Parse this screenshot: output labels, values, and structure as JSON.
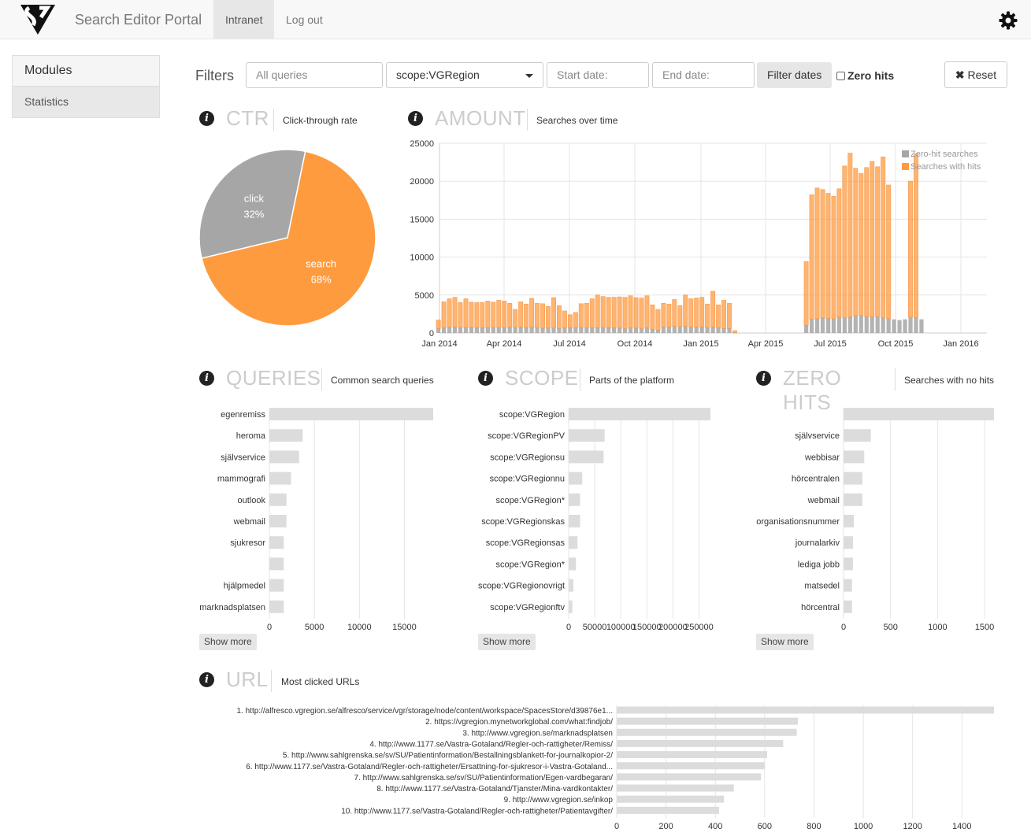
{
  "navbar": {
    "brand": "Search Editor Portal",
    "links": [
      "Intranet",
      "Log out"
    ],
    "settings_icon": "gear-icon"
  },
  "sidebar": {
    "heading": "Modules",
    "items": [
      "Statistics"
    ]
  },
  "filters": {
    "label": "Filters",
    "query_placeholder": "All queries",
    "scope_selected": "scope:VGRegion",
    "start_placeholder": "Start date:",
    "end_placeholder": "End date:",
    "filter_dates_label": "Filter dates",
    "zero_hits_label": "Zero hits",
    "zero_hits_checked": false,
    "reset_label": "Reset"
  },
  "sections": {
    "ctr": {
      "title": "CTR",
      "subtitle": "Click-through rate"
    },
    "amount": {
      "title": "AMOUNT",
      "subtitle": "Searches over time"
    },
    "queries": {
      "title": "QUERIES",
      "subtitle": "Common search queries",
      "show_more": "Show more"
    },
    "scope": {
      "title": "SCOPE",
      "subtitle": "Parts of the platform",
      "show_more": "Show more"
    },
    "zero_hits": {
      "title": "ZERO HITS",
      "subtitle": "Searches with no hits",
      "show_more": "Show more"
    },
    "url": {
      "title": "URL",
      "subtitle": "Most clicked URLs"
    }
  },
  "colors": {
    "orange": "#ff9b3f",
    "grey": "#a6a6a6",
    "bar": "#dcdcdc"
  },
  "chart_data": [
    {
      "type": "pie",
      "categories": [
        "click",
        "search"
      ],
      "values": [
        32,
        68
      ],
      "labels": [
        "32%",
        "68%"
      ]
    },
    {
      "type": "bar",
      "stacked": true,
      "x_tick_labels": [
        "Jan 2014",
        "Apr 2014",
        "Jul 2014",
        "Oct 2014",
        "Jan 2015",
        "Apr 2015",
        "Jul 2015",
        "Oct 2015",
        "Jan 2016"
      ],
      "ylim": [
        0,
        25000
      ],
      "y_ticks": [
        0,
        5000,
        10000,
        15000,
        20000,
        25000
      ],
      "legend": [
        "Zero-hit searches",
        "Searches with hits"
      ],
      "legend_position": "top-right",
      "grid": true,
      "series": [
        {
          "name": "Zero-hit searches",
          "values": [
            600,
            700,
            800,
            800,
            700,
            700,
            750,
            700,
            700,
            700,
            750,
            700,
            700,
            800,
            700,
            800,
            700,
            750,
            700,
            650,
            700,
            650,
            600,
            700,
            700,
            700,
            750,
            700,
            700,
            700,
            700,
            700,
            700,
            650,
            600,
            700,
            650,
            600,
            700,
            500,
            400,
            800,
            800,
            900,
            800,
            900,
            800,
            800,
            800,
            700,
            800,
            700,
            600,
            600,
            0,
            0,
            0,
            0,
            0,
            0,
            0,
            0,
            0,
            0,
            0,
            0,
            0,
            1000,
            1800,
            1900,
            2000,
            1900,
            1900,
            2100,
            2000,
            2100,
            2300,
            2300,
            2200,
            2100,
            2200,
            2000,
            1900,
            1800,
            1700,
            1800,
            2100,
            2000,
            1800
          ]
        },
        {
          "name": "Searches with hits",
          "values": [
            1100,
            3400,
            3700,
            3900,
            3300,
            3800,
            3300,
            3300,
            3300,
            3500,
            3300,
            3600,
            3500,
            3100,
            2400,
            3300,
            3100,
            3800,
            3200,
            3200,
            2800,
            4000,
            3000,
            2200,
            1700,
            2000,
            3100,
            3200,
            3800,
            4300,
            4100,
            4000,
            4000,
            4100,
            4100,
            4200,
            4000,
            4000,
            4200,
            3200,
            2700,
            3100,
            3000,
            3500,
            2800,
            4100,
            3700,
            3800,
            3900,
            3100,
            4700,
            3000,
            3700,
            3300,
            300,
            0,
            0,
            0,
            0,
            0,
            0,
            0,
            0,
            0,
            0,
            0,
            0,
            8400,
            16400,
            17200,
            16900,
            16500,
            16100,
            16900,
            20000,
            21600,
            19400,
            18700,
            19600,
            20500,
            19700,
            21200,
            17600,
            0,
            0,
            0,
            17900,
            21600,
            0
          ]
        }
      ]
    },
    {
      "type": "bar",
      "orientation": "horizontal",
      "categories": [
        "egenremiss",
        "heroma",
        "självservice",
        "mammografi",
        "outlook",
        "webmail",
        "sjukresor",
        "",
        "hjälpmedel",
        "marknadsplatsen"
      ],
      "values": [
        18200,
        3700,
        3300,
        2400,
        1900,
        1900,
        1600,
        1600,
        1600,
        1600
      ],
      "x_ticks": [
        0,
        5000,
        10000,
        15000
      ]
    },
    {
      "type": "bar",
      "orientation": "horizontal",
      "categories": [
        "scope:VGRegion",
        "scope:VGRegionPV",
        "scope:VGRegionsu",
        "scope:VGRegionnu",
        "scope:VGRegion*",
        "scope:VGRegionskas",
        "scope:VGRegionsas",
        "scope:VGRegion*",
        "scope:VGRegionovrigt",
        "scope:VGRegionftv"
      ],
      "values": [
        272000,
        69000,
        67000,
        26000,
        22000,
        22000,
        17000,
        14000,
        9000,
        7000
      ],
      "x_ticks": [
        0,
        50000,
        100000,
        150000,
        200000,
        250000
      ]
    },
    {
      "type": "bar",
      "orientation": "horizontal",
      "categories": [
        "",
        "självservice",
        "webbisar",
        "hörcentralen",
        "webmail",
        "organisationsnummer",
        "journalarkiv",
        "lediga jobb",
        "matsedel",
        "hörcentral"
      ],
      "values": [
        1600,
        290,
        220,
        200,
        200,
        110,
        100,
        100,
        90,
        90
      ],
      "x_ticks": [
        0,
        500,
        1000,
        1500
      ]
    },
    {
      "type": "bar",
      "orientation": "horizontal",
      "categories": [
        "1. http://alfresco.vgregion.se/alfresco/service/vgr/storage/node/content/workspace/SpacesStore/d39876e1...",
        "2. https://vgregion.mynetworkglobal.com/what:findjob/",
        "3. http://www.vgregion.se/marknadsplatsen",
        "4. http://www.1177.se/Vastra-Gotaland/Regler-och-rattigheter/Remiss/",
        "5. http://www.sahlgrenska.se/sv/SU/Patientinformation/Bestallningsblankett-for-journalkopior-2/",
        "6. http://www.1177.se/Vastra-Gotaland/Regler-och-rattigheter/Ersattning-for-sjukresor-i-Vastra-Gotaland...",
        "7. http://www.sahlgrenska.se/sv/SU/Patientinformation/Egen-vardbegaran/",
        "8. http://www.1177.se/Vastra-Gotaland/Tjanster/Mina-vardkontakter/",
        "9. http://www.vgregion.se/inkop",
        "10. http://www.1177.se/Vastra-Gotaland/Regler-och-rattigheter/Patientavgifter/"
      ],
      "values": [
        1530,
        735,
        730,
        675,
        610,
        600,
        585,
        475,
        435,
        415
      ],
      "x_ticks": [
        0,
        200,
        400,
        600,
        800,
        1000,
        1200,
        1400
      ]
    }
  ]
}
